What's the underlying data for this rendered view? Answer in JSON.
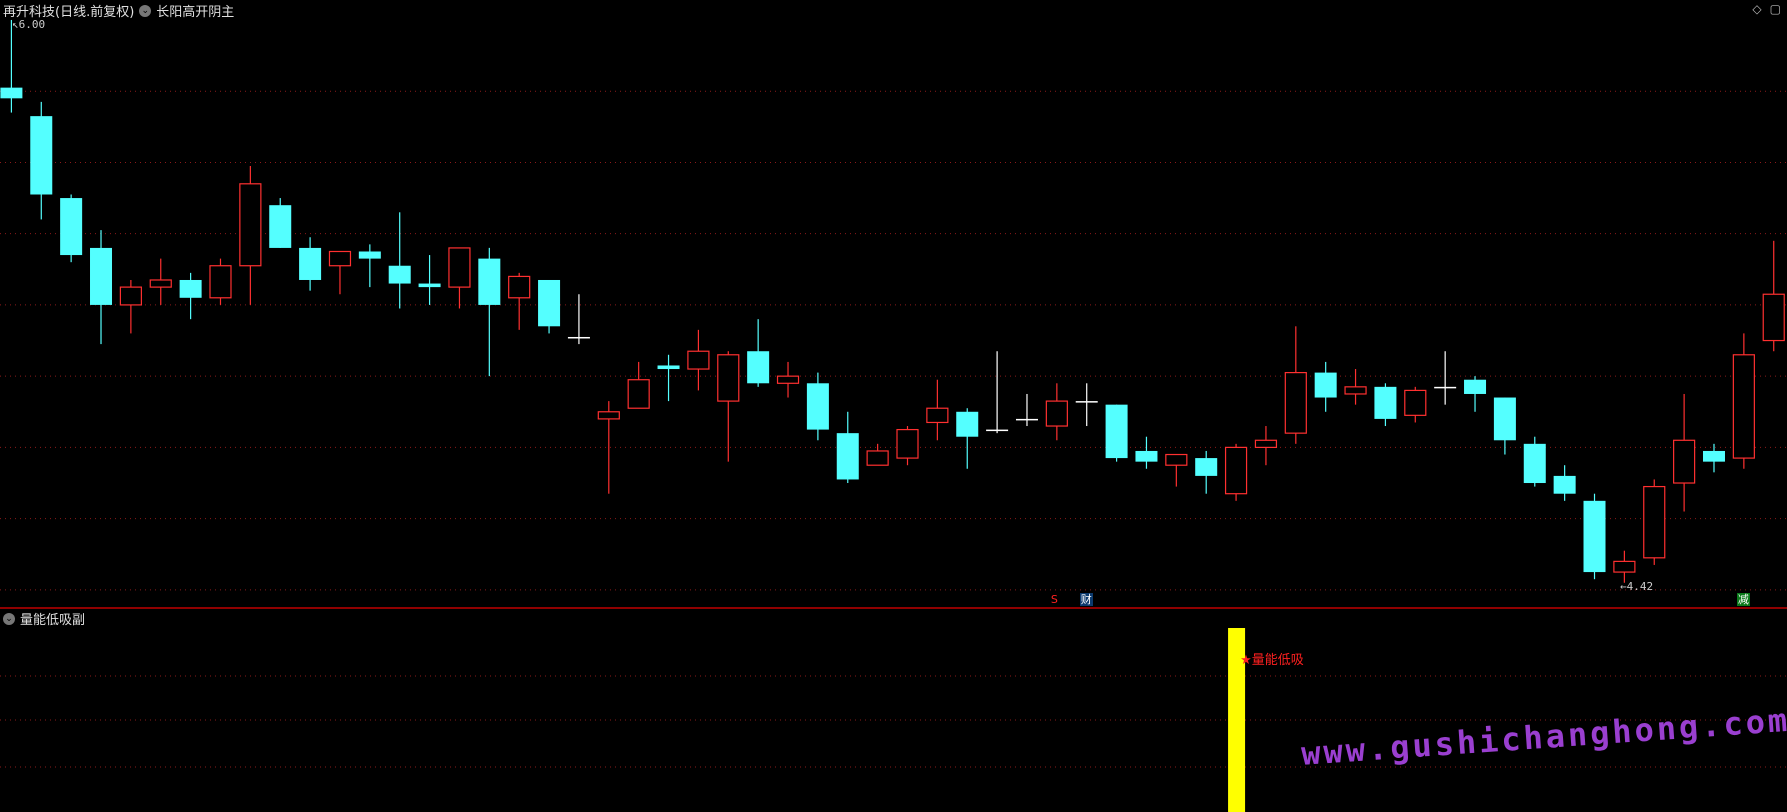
{
  "header": {
    "title": "再升科技(日线.前复权)",
    "indicator": "长阳高开阴主",
    "icons": [
      "diamond-icon",
      "window-icon"
    ]
  },
  "price_labels": {
    "high": "6.00",
    "low": "4.42"
  },
  "markers": [
    {
      "index": 35,
      "text": "S",
      "color": "#ff2020",
      "bg": "transparent"
    },
    {
      "index": 36,
      "text": "财",
      "color": "#ffffff",
      "bg": "#0b3a6e"
    },
    {
      "index": 58,
      "text": "减",
      "color": "#ffffff",
      "bg": "#0a7a1a"
    }
  ],
  "sub_panel": {
    "title": "量能低吸副",
    "signal_index": 41,
    "signal_label": "★量能低吸",
    "bar_color": "#ffff00"
  },
  "watermark": "www.gushichanghong.com",
  "colors": {
    "up": "#ff3030",
    "down": "#54ffff",
    "doji": "#ffffff",
    "grid": "#8b1a1a",
    "axis": "#c00000"
  },
  "chart_data": {
    "type": "candlestick",
    "ylim": [
      4.38,
      6.02
    ],
    "candles": [
      [
        5.81,
        5.78,
        6.0,
        5.74
      ],
      [
        5.73,
        5.51,
        5.77,
        5.44
      ],
      [
        5.5,
        5.34,
        5.51,
        5.32
      ],
      [
        5.36,
        5.2,
        5.41,
        5.09
      ],
      [
        5.2,
        5.25,
        5.27,
        5.12
      ],
      [
        5.25,
        5.27,
        5.33,
        5.2
      ],
      [
        5.27,
        5.22,
        5.29,
        5.16
      ],
      [
        5.22,
        5.31,
        5.33,
        5.2
      ],
      [
        5.31,
        5.54,
        5.59,
        5.2
      ],
      [
        5.48,
        5.36,
        5.5,
        5.36
      ],
      [
        5.36,
        5.27,
        5.39,
        5.24
      ],
      [
        5.31,
        5.35,
        5.35,
        5.23
      ],
      [
        5.35,
        5.33,
        5.37,
        5.25
      ],
      [
        5.31,
        5.26,
        5.46,
        5.19
      ],
      [
        5.26,
        5.25,
        5.34,
        5.2
      ],
      [
        5.25,
        5.36,
        5.36,
        5.19
      ],
      [
        5.33,
        5.2,
        5.36,
        5.0
      ],
      [
        5.22,
        5.28,
        5.29,
        5.13
      ],
      [
        5.27,
        5.14,
        5.27,
        5.12
      ],
      [
        5.11,
        5.11,
        5.23,
        5.09
      ],
      [
        4.88,
        4.9,
        4.93,
        4.67
      ],
      [
        4.91,
        4.99,
        5.04,
        4.91
      ],
      [
        5.03,
        5.02,
        5.06,
        4.93
      ],
      [
        5.02,
        5.07,
        5.13,
        4.96
      ],
      [
        4.93,
        5.06,
        5.07,
        4.76
      ],
      [
        5.07,
        4.98,
        5.16,
        4.97
      ],
      [
        4.98,
        5.0,
        5.04,
        4.94
      ],
      [
        4.98,
        4.85,
        5.01,
        4.82
      ],
      [
        4.84,
        4.71,
        4.9,
        4.7
      ],
      [
        4.75,
        4.79,
        4.81,
        4.75
      ],
      [
        4.77,
        4.85,
        4.86,
        4.75
      ],
      [
        4.87,
        4.91,
        4.99,
        4.82
      ],
      [
        4.9,
        4.83,
        4.91,
        4.74
      ],
      [
        4.85,
        4.85,
        5.07,
        4.84
      ],
      [
        4.88,
        4.88,
        4.95,
        4.86
      ],
      [
        4.86,
        4.93,
        4.98,
        4.82
      ],
      [
        4.93,
        4.93,
        4.98,
        4.86
      ],
      [
        4.92,
        4.77,
        4.92,
        4.76
      ],
      [
        4.79,
        4.76,
        4.83,
        4.74
      ],
      [
        4.75,
        4.78,
        4.78,
        4.69
      ],
      [
        4.77,
        4.72,
        4.79,
        4.67
      ],
      [
        4.67,
        4.8,
        4.81,
        4.65
      ],
      [
        4.8,
        4.82,
        4.86,
        4.75
      ],
      [
        4.84,
        5.01,
        5.14,
        4.81
      ],
      [
        5.01,
        4.94,
        5.04,
        4.9
      ],
      [
        4.95,
        4.97,
        5.02,
        4.92
      ],
      [
        4.97,
        4.88,
        4.98,
        4.86
      ],
      [
        4.89,
        4.96,
        4.97,
        4.87
      ],
      [
        4.97,
        4.97,
        5.07,
        4.92
      ],
      [
        4.99,
        4.95,
        5.0,
        4.9
      ],
      [
        4.94,
        4.82,
        4.94,
        4.78
      ],
      [
        4.81,
        4.7,
        4.83,
        4.69
      ],
      [
        4.72,
        4.67,
        4.75,
        4.65
      ],
      [
        4.65,
        4.45,
        4.67,
        4.43
      ],
      [
        4.45,
        4.48,
        4.51,
        4.42
      ],
      [
        4.49,
        4.69,
        4.71,
        4.47
      ],
      [
        4.7,
        4.82,
        4.95,
        4.62
      ],
      [
        4.79,
        4.76,
        4.81,
        4.73
      ],
      [
        4.77,
        5.06,
        5.12,
        4.74
      ],
      [
        5.1,
        5.23,
        5.38,
        5.07
      ]
    ],
    "candle_fields": [
      "open",
      "close",
      "high",
      "low"
    ]
  }
}
